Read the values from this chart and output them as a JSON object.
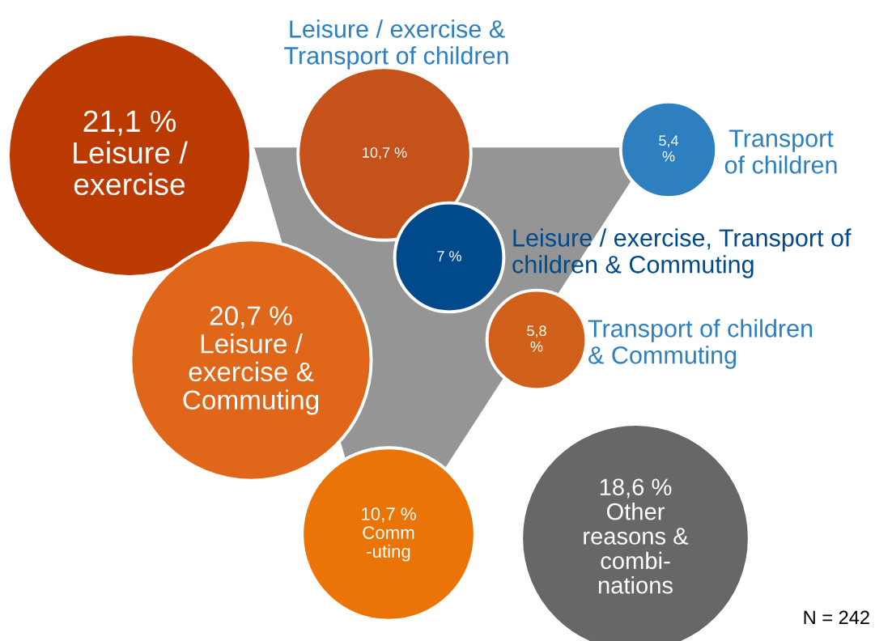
{
  "chart_data": {
    "type": "other",
    "categories": [
      "Leisure /\nexercise",
      "Leisure / exercise &\nTransport of children",
      "Transport\nof children",
      "Leisure / exercise, Transport of\nchildren & Commuting",
      "Transport of children\n& Commuting",
      "Leisure /\nexercise &\nCommuting",
      "Comm\n-uting",
      "Other\nreasons &\ncombi-\nnations"
    ],
    "values": [
      21.1,
      10.7,
      5.4,
      7,
      5.8,
      20.7,
      10.7,
      18.6
    ],
    "value_labels": [
      "21,1 %",
      "10,7 %",
      "5,4\n%",
      "7 %",
      "5,8\n%",
      "20,7 %",
      "10,7 %",
      "18,6 %"
    ],
    "colors": [
      "#bb3a02",
      "#c4521a",
      "#2e7fc0",
      "#004a8c",
      "#d0601a",
      "#e0661a",
      "#ea7408",
      "#676767"
    ],
    "annotations": [
      "N = 242"
    ]
  }
}
